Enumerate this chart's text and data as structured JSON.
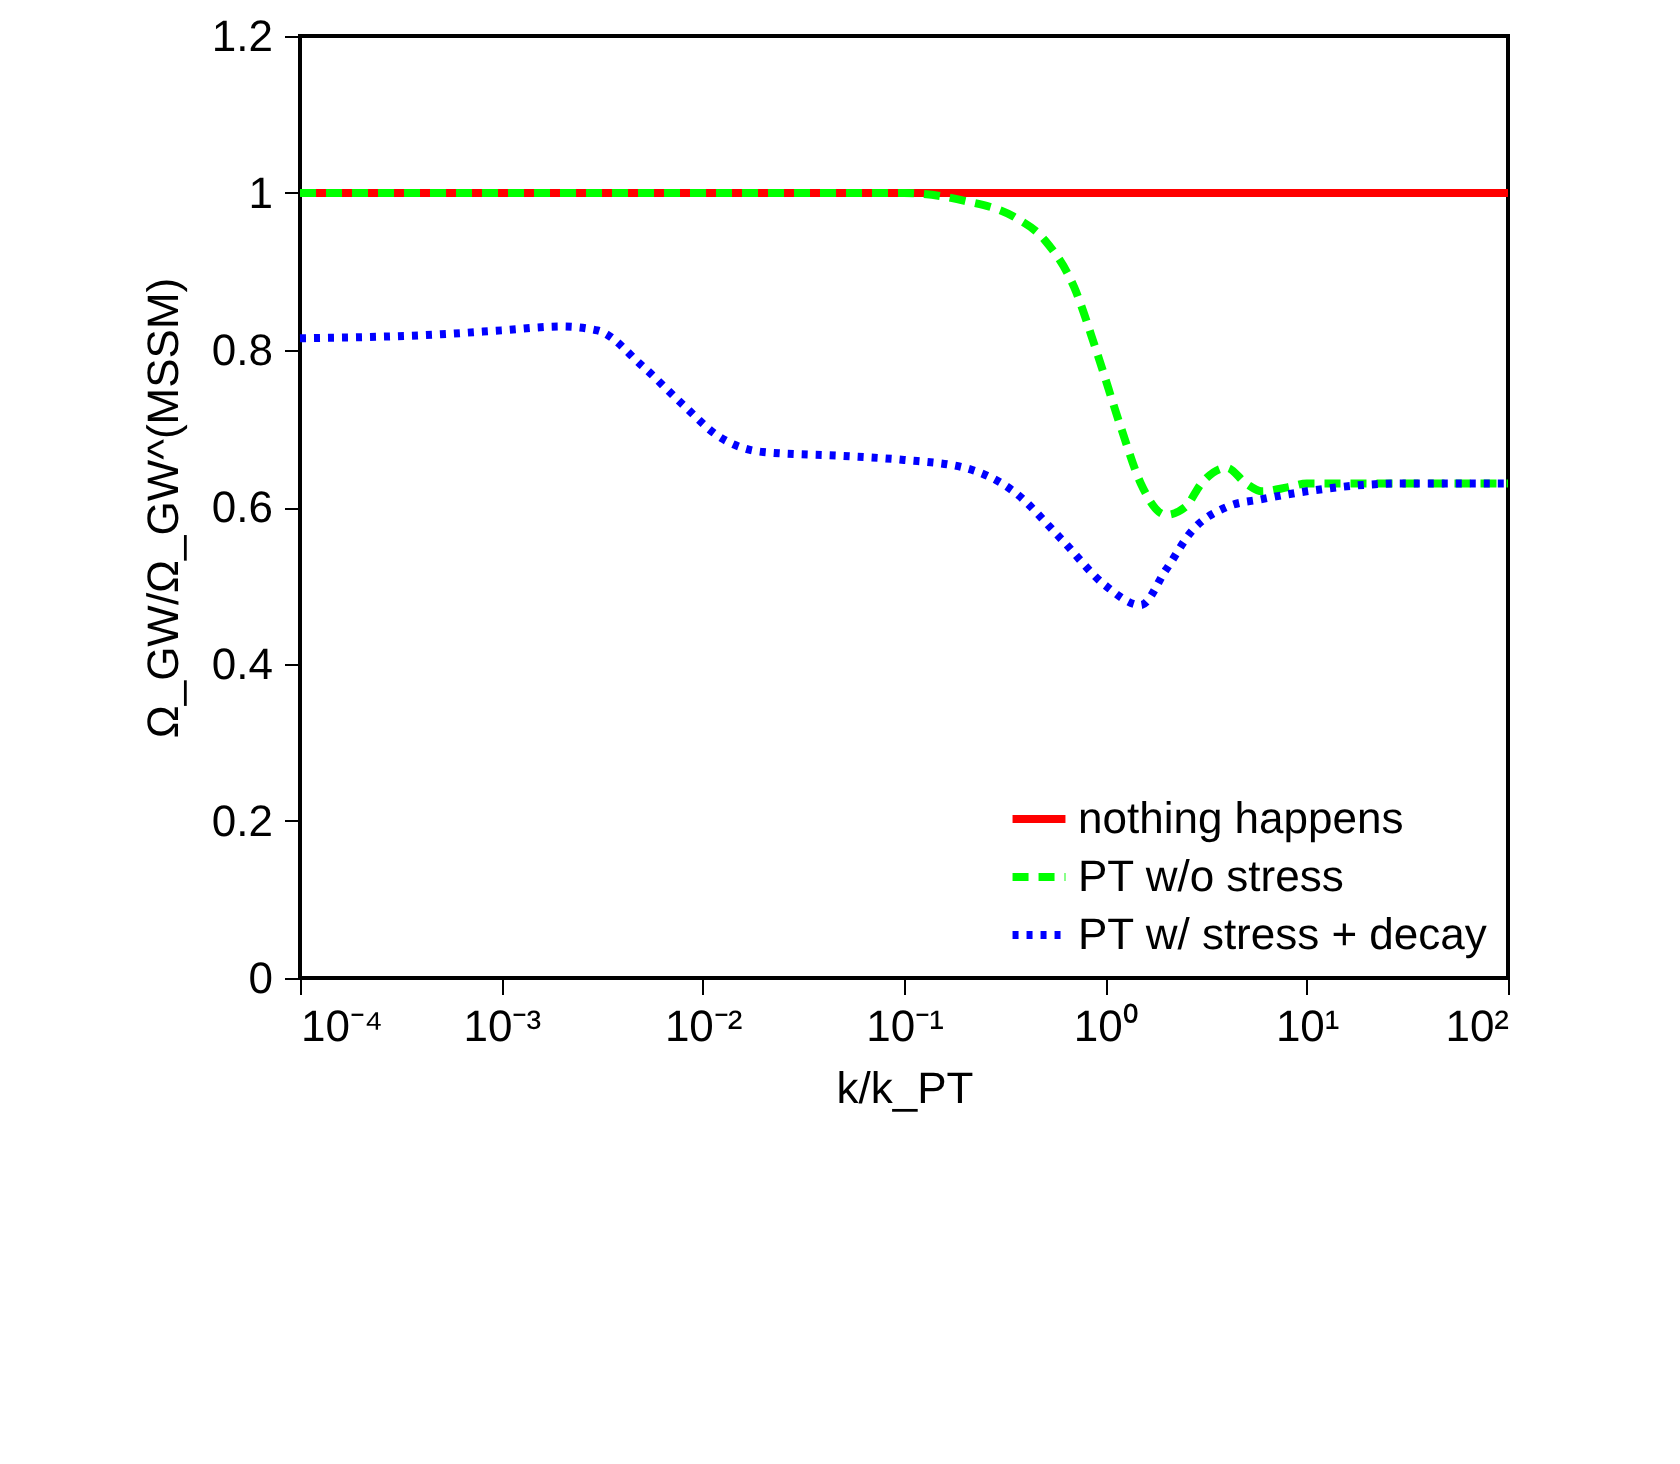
{
  "chart_data": {
    "type": "line",
    "xlabel": "k/k_PT",
    "ylabel": "Ω_GW/Ω_GW^(MSSM)",
    "log": "x",
    "xlim": [
      0.0001,
      100
    ],
    "ylim": [
      0,
      1.2
    ],
    "xticks": [
      {
        "value": 0.0001,
        "label": "10⁻⁴"
      },
      {
        "value": 0.001,
        "label": "10⁻³"
      },
      {
        "value": 0.01,
        "label": "10⁻²"
      },
      {
        "value": 0.1,
        "label": "10⁻¹"
      },
      {
        "value": 1,
        "label": "10⁰"
      },
      {
        "value": 10,
        "label": "10¹"
      },
      {
        "value": 100,
        "label": "10²"
      }
    ],
    "yticks": [
      0,
      0.2,
      0.4,
      0.6,
      0.8,
      1,
      1.2
    ],
    "grid": false,
    "legend": "bottom right",
    "marker": "none",
    "series": [
      {
        "name": "nothing happens",
        "color": "#ff0000",
        "line_style": "solid",
        "x": [
          0.0001,
          100
        ],
        "values": [
          1,
          1
        ]
      },
      {
        "name": "PT w/o stress",
        "color": "#00ff00",
        "line_style": "dashed",
        "x": [
          0.0001,
          0.05,
          0.1,
          0.2,
          0.35,
          0.5,
          0.7,
          0.9,
          1.2,
          1.5,
          2,
          2.5,
          3,
          4,
          5,
          6,
          8,
          10,
          30,
          100
        ],
        "values": [
          1,
          1,
          1,
          0.99,
          0.97,
          0.94,
          0.88,
          0.8,
          0.7,
          0.63,
          0.59,
          0.6,
          0.63,
          0.65,
          0.63,
          0.62,
          0.625,
          0.63,
          0.63,
          0.63
        ]
      },
      {
        "name": "PT w/ stress + decay",
        "color": "#0000ff",
        "line_style": "dotted",
        "x": [
          0.0001,
          0.0005,
          0.001,
          0.002,
          0.003,
          0.005,
          0.008,
          0.012,
          0.02,
          0.05,
          0.1,
          0.2,
          0.35,
          0.6,
          1,
          1.5,
          2,
          2.7,
          4,
          6,
          10,
          30,
          100
        ],
        "values": [
          0.815,
          0.82,
          0.825,
          0.83,
          0.825,
          0.78,
          0.73,
          0.69,
          0.67,
          0.665,
          0.66,
          0.65,
          0.62,
          0.56,
          0.5,
          0.475,
          0.52,
          0.57,
          0.6,
          0.61,
          0.62,
          0.63,
          0.63
        ]
      }
    ]
  }
}
